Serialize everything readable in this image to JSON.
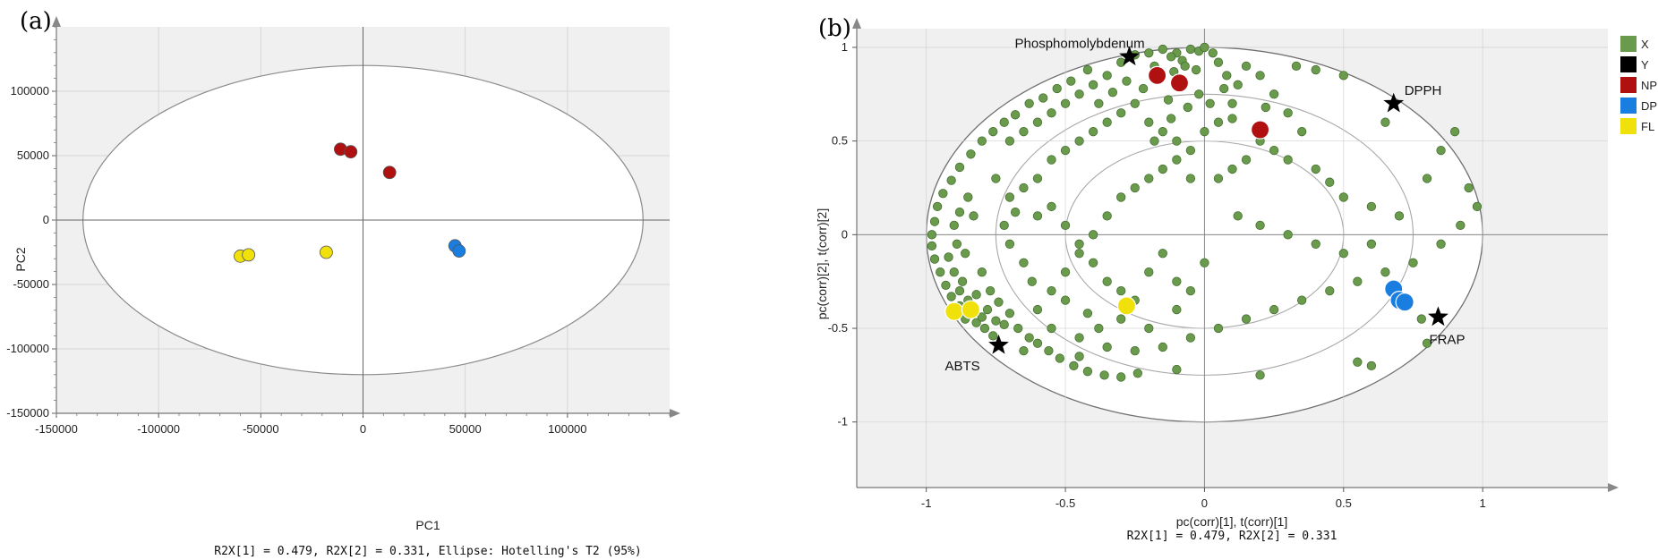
{
  "chart_data": [
    {
      "panel": "(a)",
      "type": "scatter",
      "xlabel": "PC1",
      "ylabel": "PC2",
      "xlim": [
        -150000,
        150000
      ],
      "ylim": [
        -150000,
        150000
      ],
      "xticks": [
        "-150000",
        "-100000",
        "-50000",
        "0",
        "50000",
        "100000"
      ],
      "yticks": [
        "-150000",
        "-100000",
        "-50000",
        "0",
        "50000",
        "100000"
      ],
      "grid": true,
      "ellipse": {
        "rx": 137000,
        "ry": 120000
      },
      "caption": "R2X[1] = 0.479, R2X[2] = 0.331, Ellipse: Hotelling's T2 (95%)",
      "series": [
        {
          "color": "#b01010",
          "points": [
            [
              -11000,
              55000
            ],
            [
              -6000,
              53000
            ],
            [
              13000,
              37000
            ]
          ]
        },
        {
          "color": "#1a7de0",
          "points": [
            [
              45000,
              -20000
            ],
            [
              47000,
              -24000
            ]
          ]
        },
        {
          "color": "#f0e10a",
          "points": [
            [
              -60000,
              -28000
            ],
            [
              -56000,
              -27000
            ],
            [
              -18000,
              -25000
            ]
          ]
        }
      ]
    },
    {
      "panel": "(b)",
      "type": "scatter",
      "xlabel": "pc(corr)[1], t(corr)[1]",
      "ylabel": "pc(corr)[2], t(corr)[2]",
      "xlim": [
        -1.25,
        1.45
      ],
      "ylim": [
        -1.35,
        1.1
      ],
      "xticks": [
        "-1",
        "-0.5",
        "0",
        "0.5",
        "1"
      ],
      "yticks": [
        "-1",
        "-0.5",
        "0",
        "0.5",
        "1"
      ],
      "grid": true,
      "ellipses": [
        {
          "rx": 1,
          "ry": 1
        },
        {
          "rx": 0.75,
          "ry": 0.75
        },
        {
          "rx": 0.5,
          "ry": 0.5
        }
      ],
      "caption": "R2X[1] = 0.479, R2X[2] = 0.331",
      "legend": [
        {
          "label": "X",
          "color": "#6a9a4c"
        },
        {
          "label": "Y",
          "color": "#000000"
        },
        {
          "label": "NP",
          "color": "#b01010"
        },
        {
          "label": "DP",
          "color": "#1a7de0"
        },
        {
          "label": "FL",
          "color": "#f0e10a"
        }
      ],
      "variables_Y": [
        {
          "name": "Phosphomolybdenum",
          "x": -0.27,
          "y": 0.95
        },
        {
          "name": "DPPH",
          "x": 0.68,
          "y": 0.7
        },
        {
          "name": "FRAP",
          "x": 0.84,
          "y": -0.44
        },
        {
          "name": "ABTS",
          "x": -0.74,
          "y": -0.59
        }
      ],
      "scores": [
        {
          "group": "NP",
          "color": "#b01010",
          "points": [
            [
              -0.17,
              0.85
            ],
            [
              -0.09,
              0.81
            ],
            [
              0.2,
              0.56
            ]
          ]
        },
        {
          "group": "DP",
          "color": "#1a7de0",
          "points": [
            [
              0.68,
              -0.29
            ],
            [
              0.7,
              -0.35
            ],
            [
              0.72,
              -0.36
            ]
          ]
        },
        {
          "group": "FL",
          "color": "#f0e10a",
          "points": [
            [
              -0.9,
              -0.41
            ],
            [
              -0.84,
              -0.4
            ],
            [
              -0.28,
              -0.38
            ]
          ]
        }
      ],
      "x_loadings": {
        "color": "#6a9a4c",
        "points": [
          [
            -0.1,
            0.97
          ],
          [
            -0.05,
            0.99
          ],
          [
            -0.12,
            0.95
          ],
          [
            -0.08,
            0.93
          ],
          [
            -0.02,
            0.98
          ],
          [
            0.0,
            1.0
          ],
          [
            -0.15,
            0.99
          ],
          [
            -0.2,
            0.97
          ],
          [
            -0.25,
            0.96
          ],
          [
            -0.07,
            0.9
          ],
          [
            -0.03,
            0.88
          ],
          [
            0.03,
            0.97
          ],
          [
            0.05,
            0.92
          ],
          [
            -0.11,
            0.87
          ],
          [
            -0.18,
            0.9
          ],
          [
            -0.3,
            0.92
          ],
          [
            -0.35,
            0.85
          ],
          [
            -0.42,
            0.88
          ],
          [
            -0.48,
            0.82
          ],
          [
            -0.53,
            0.78
          ],
          [
            -0.58,
            0.73
          ],
          [
            -0.63,
            0.7
          ],
          [
            -0.68,
            0.64
          ],
          [
            -0.72,
            0.6
          ],
          [
            -0.76,
            0.55
          ],
          [
            -0.8,
            0.5
          ],
          [
            -0.84,
            0.43
          ],
          [
            -0.88,
            0.36
          ],
          [
            -0.91,
            0.29
          ],
          [
            -0.94,
            0.22
          ],
          [
            -0.96,
            0.15
          ],
          [
            -0.97,
            0.07
          ],
          [
            -0.98,
            0.0
          ],
          [
            -0.98,
            -0.06
          ],
          [
            -0.97,
            -0.13
          ],
          [
            -0.95,
            -0.2
          ],
          [
            -0.93,
            -0.27
          ],
          [
            -0.91,
            -0.33
          ],
          [
            -0.88,
            -0.38
          ],
          [
            -0.85,
            -0.43
          ],
          [
            -0.82,
            -0.47
          ],
          [
            -0.79,
            -0.5
          ],
          [
            -0.76,
            -0.54
          ],
          [
            -0.86,
            -0.45
          ],
          [
            -0.83,
            -0.42
          ],
          [
            -0.8,
            -0.44
          ],
          [
            -0.78,
            -0.4
          ],
          [
            -0.75,
            -0.46
          ],
          [
            -0.72,
            -0.48
          ],
          [
            -0.88,
            -0.3
          ],
          [
            -0.85,
            -0.35
          ],
          [
            -0.82,
            -0.32
          ],
          [
            -0.9,
            -0.2
          ],
          [
            -0.87,
            -0.25
          ],
          [
            -0.92,
            -0.12
          ],
          [
            -0.89,
            -0.05
          ],
          [
            -0.9,
            0.05
          ],
          [
            -0.88,
            0.12
          ],
          [
            -0.85,
            0.2
          ],
          [
            -0.83,
            0.1
          ],
          [
            -0.86,
            -0.1
          ],
          [
            -0.8,
            -0.2
          ],
          [
            -0.77,
            -0.3
          ],
          [
            -0.74,
            -0.36
          ],
          [
            -0.7,
            -0.42
          ],
          [
            -0.67,
            -0.5
          ],
          [
            -0.63,
            -0.55
          ],
          [
            -0.6,
            -0.58
          ],
          [
            -0.56,
            -0.62
          ],
          [
            -0.52,
            -0.66
          ],
          [
            -0.47,
            -0.7
          ],
          [
            -0.42,
            -0.73
          ],
          [
            -0.36,
            -0.75
          ],
          [
            -0.3,
            -0.76
          ],
          [
            -0.24,
            -0.74
          ],
          [
            -0.7,
            0.5
          ],
          [
            -0.65,
            0.55
          ],
          [
            -0.6,
            0.6
          ],
          [
            -0.55,
            0.65
          ],
          [
            -0.5,
            0.7
          ],
          [
            -0.45,
            0.75
          ],
          [
            -0.4,
            0.8
          ],
          [
            -0.75,
            0.3
          ],
          [
            -0.7,
            0.2
          ],
          [
            -0.65,
            0.25
          ],
          [
            -0.6,
            0.3
          ],
          [
            -0.55,
            0.4
          ],
          [
            -0.5,
            0.45
          ],
          [
            -0.45,
            0.5
          ],
          [
            -0.4,
            0.55
          ],
          [
            -0.35,
            0.6
          ],
          [
            -0.3,
            0.65
          ],
          [
            -0.25,
            0.7
          ],
          [
            -0.2,
            0.6
          ],
          [
            -0.15,
            0.55
          ],
          [
            -0.1,
            0.5
          ],
          [
            -0.05,
            0.45
          ],
          [
            0.0,
            0.55
          ],
          [
            0.05,
            0.6
          ],
          [
            0.1,
            0.7
          ],
          [
            0.12,
            0.8
          ],
          [
            0.08,
            0.85
          ],
          [
            0.15,
            0.9
          ],
          [
            0.2,
            0.85
          ],
          [
            0.25,
            0.75
          ],
          [
            0.3,
            0.65
          ],
          [
            0.35,
            0.55
          ],
          [
            0.25,
            0.45
          ],
          [
            0.3,
            0.4
          ],
          [
            0.4,
            0.35
          ],
          [
            0.45,
            0.28
          ],
          [
            0.5,
            0.2
          ],
          [
            0.6,
            0.15
          ],
          [
            0.7,
            0.1
          ],
          [
            0.8,
            0.3
          ],
          [
            0.85,
            0.45
          ],
          [
            0.9,
            0.55
          ],
          [
            0.95,
            0.25
          ],
          [
            0.98,
            0.15
          ],
          [
            0.92,
            0.05
          ],
          [
            0.85,
            -0.05
          ],
          [
            0.75,
            -0.15
          ],
          [
            0.65,
            -0.2
          ],
          [
            0.55,
            -0.25
          ],
          [
            0.45,
            -0.3
          ],
          [
            0.35,
            -0.35
          ],
          [
            0.25,
            -0.4
          ],
          [
            0.15,
            -0.45
          ],
          [
            0.05,
            -0.5
          ],
          [
            -0.05,
            -0.55
          ],
          [
            -0.15,
            -0.6
          ],
          [
            -0.25,
            -0.62
          ],
          [
            -0.35,
            -0.6
          ],
          [
            -0.45,
            -0.55
          ],
          [
            -0.55,
            -0.5
          ],
          [
            -0.6,
            -0.4
          ],
          [
            -0.55,
            -0.3
          ],
          [
            -0.5,
            -0.2
          ],
          [
            -0.45,
            -0.1
          ],
          [
            -0.4,
            0.0
          ],
          [
            -0.35,
            0.1
          ],
          [
            -0.3,
            0.2
          ],
          [
            -0.25,
            0.25
          ],
          [
            -0.2,
            0.3
          ],
          [
            -0.15,
            0.35
          ],
          [
            -0.1,
            0.4
          ],
          [
            -0.05,
            0.3
          ],
          [
            0.05,
            0.3
          ],
          [
            0.1,
            0.35
          ],
          [
            0.15,
            0.4
          ],
          [
            0.2,
            0.5
          ],
          [
            0.12,
            0.1
          ],
          [
            0.2,
            0.05
          ],
          [
            0.3,
            0.0
          ],
          [
            0.4,
            -0.05
          ],
          [
            0.5,
            -0.1
          ],
          [
            0.6,
            -0.05
          ],
          [
            -0.6,
            0.1
          ],
          [
            -0.55,
            0.15
          ],
          [
            -0.5,
            0.05
          ],
          [
            -0.45,
            -0.05
          ],
          [
            -0.4,
            -0.15
          ],
          [
            -0.35,
            -0.25
          ],
          [
            -0.3,
            -0.3
          ],
          [
            -0.25,
            -0.35
          ],
          [
            -0.2,
            -0.2
          ],
          [
            -0.15,
            -0.1
          ],
          [
            -0.1,
            -0.25
          ],
          [
            -0.05,
            -0.3
          ],
          [
            0.0,
            -0.15
          ],
          [
            -0.65,
            -0.15
          ],
          [
            -0.7,
            -0.05
          ],
          [
            -0.72,
            0.05
          ],
          [
            -0.68,
            0.12
          ],
          [
            -0.62,
            -0.25
          ],
          [
            -0.5,
            -0.35
          ],
          [
            -0.42,
            -0.42
          ],
          [
            -0.38,
            -0.5
          ],
          [
            -0.3,
            -0.45
          ],
          [
            -0.2,
            -0.5
          ],
          [
            -0.1,
            -0.4
          ],
          [
            0.55,
            -0.68
          ],
          [
            0.6,
            -0.7
          ],
          [
            0.2,
            -0.75
          ],
          [
            -0.1,
            -0.72
          ],
          [
            -0.45,
            -0.65
          ],
          [
            -0.65,
            -0.62
          ],
          [
            0.78,
            -0.45
          ],
          [
            0.8,
            -0.58
          ],
          [
            0.65,
            0.6
          ],
          [
            0.5,
            0.85
          ],
          [
            0.4,
            0.88
          ],
          [
            0.33,
            0.9
          ],
          [
            -0.02,
            0.75
          ],
          [
            0.02,
            0.7
          ],
          [
            -0.06,
            0.68
          ],
          [
            -0.13,
            0.72
          ],
          [
            -0.22,
            0.78
          ],
          [
            -0.28,
            0.82
          ],
          [
            -0.33,
            0.76
          ],
          [
            -0.38,
            0.7
          ],
          [
            0.07,
            0.78
          ],
          [
            0.1,
            0.62
          ],
          [
            -0.12,
            0.62
          ],
          [
            -0.18,
            0.5
          ],
          [
            0.22,
            0.68
          ]
        ]
      }
    }
  ]
}
